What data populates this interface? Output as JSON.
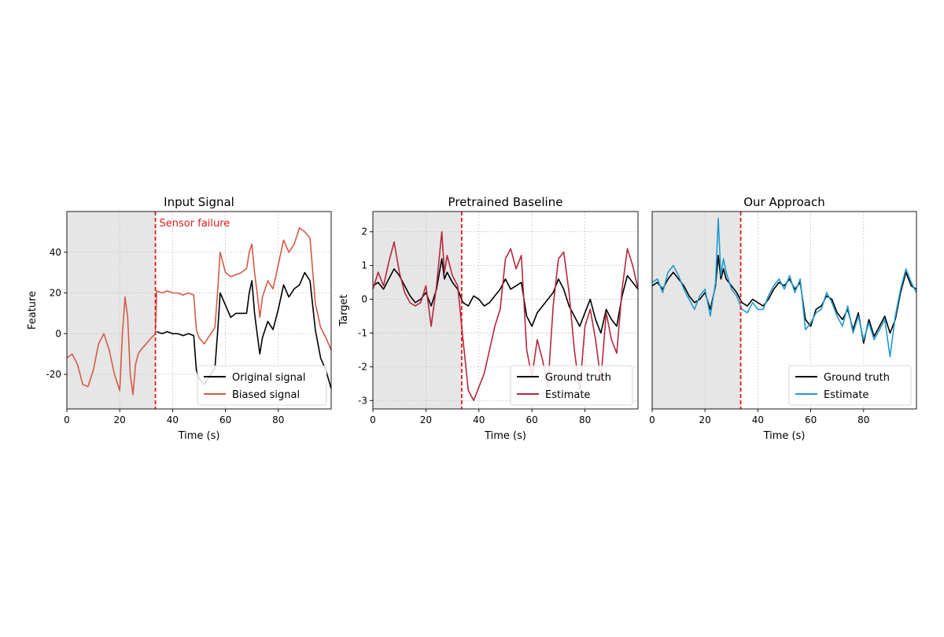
{
  "chart_data": [
    {
      "type": "line",
      "title": "Input Signal",
      "xlabel": "Time (s)",
      "ylabel": "Feature",
      "xlim": [
        0,
        100
      ],
      "ylim": [
        -37,
        60
      ],
      "xticks": [
        0,
        20,
        40,
        60,
        80
      ],
      "yticks": [
        -20,
        0,
        20,
        40
      ],
      "grid": true,
      "shaded_region": [
        0,
        33.5
      ],
      "vline": {
        "x": 33.5,
        "color": "#e41a1c",
        "label": "Sensor failure"
      },
      "legend_position": "lower-right",
      "series": [
        {
          "name": "Original signal",
          "color": "#000000",
          "x": [
            34,
            36,
            38,
            40,
            42,
            44,
            46,
            48,
            49,
            50,
            52,
            54,
            56,
            57,
            58,
            60,
            62,
            64,
            66,
            68,
            69,
            70,
            71,
            72,
            73,
            74,
            76,
            78,
            80,
            82,
            84,
            86,
            88,
            90,
            92,
            94,
            96,
            98,
            100
          ],
          "values": [
            1,
            0,
            1,
            0,
            0,
            -1,
            0,
            -1,
            -18,
            -22,
            -25,
            -21,
            -17,
            0,
            20,
            14,
            8,
            10,
            10,
            10,
            20,
            26,
            10,
            0,
            -10,
            -2,
            6,
            2,
            12,
            24,
            18,
            22,
            24,
            30,
            26,
            2,
            -12,
            -18,
            -27
          ]
        },
        {
          "name": "Biased signal",
          "color": "#d45b47",
          "x": [
            0,
            2,
            4,
            6,
            8,
            10,
            12,
            14,
            16,
            18,
            20,
            21,
            22,
            23,
            24,
            25,
            26,
            27,
            28,
            30,
            32,
            33.5,
            34,
            36,
            38,
            40,
            42,
            44,
            46,
            48,
            49,
            50,
            52,
            54,
            56,
            57,
            58,
            60,
            62,
            64,
            66,
            68,
            69,
            70,
            71,
            72,
            73,
            74,
            76,
            78,
            80,
            82,
            84,
            86,
            88,
            90,
            92,
            94,
            96,
            98,
            100
          ],
          "values": [
            -12,
            -10,
            -15,
            -25,
            -26,
            -18,
            -5,
            0,
            -8,
            -20,
            -28,
            0,
            18,
            8,
            -20,
            -30,
            -15,
            -10,
            -8,
            -5,
            -2,
            0,
            21,
            20,
            21,
            20,
            20,
            19,
            20,
            19,
            2,
            -2,
            -5,
            -1,
            3,
            20,
            40,
            30,
            28,
            29,
            30,
            32,
            40,
            44,
            30,
            20,
            8,
            18,
            26,
            22,
            34,
            46,
            40,
            44,
            52,
            50,
            47,
            15,
            3,
            -2,
            -8
          ]
        }
      ]
    },
    {
      "type": "line",
      "title": "Pretrained Baseline",
      "xlabel": "Time (s)",
      "ylabel": "Target",
      "xlim": [
        0,
        100
      ],
      "ylim": [
        -3.25,
        2.6
      ],
      "xticks": [
        0,
        20,
        40,
        60,
        80
      ],
      "yticks": [
        -3,
        -2,
        -1,
        0,
        1,
        2
      ],
      "grid": true,
      "shaded_region": [
        0,
        33.5
      ],
      "vline": {
        "x": 33.5,
        "color": "#e41a1c"
      },
      "legend_position": "lower-right",
      "series": [
        {
          "name": "Ground truth",
          "color": "#000000",
          "x": [
            0,
            2,
            4,
            6,
            8,
            10,
            12,
            14,
            16,
            18,
            20,
            22,
            24,
            26,
            27,
            28,
            30,
            32,
            34,
            36,
            38,
            40,
            42,
            44,
            46,
            48,
            50,
            52,
            54,
            56,
            58,
            60,
            62,
            64,
            66,
            68,
            70,
            72,
            74,
            76,
            78,
            80,
            82,
            84,
            86,
            88,
            90,
            92,
            94,
            96,
            98,
            100
          ],
          "values": [
            0.4,
            0.5,
            0.3,
            0.6,
            0.9,
            0.7,
            0.4,
            0.1,
            -0.1,
            0,
            0.2,
            -0.2,
            0.3,
            1.2,
            0.6,
            0.8,
            0.5,
            0.3,
            -0.1,
            -0.2,
            0.1,
            0,
            -0.2,
            -0.1,
            0.1,
            0.3,
            0.6,
            0.3,
            0.4,
            0.5,
            -0.5,
            -0.8,
            -0.4,
            -0.2,
            0,
            0.2,
            0.6,
            0.3,
            -0.2,
            -0.5,
            -0.8,
            -0.4,
            0,
            -0.6,
            -1,
            -0.3,
            -0.6,
            -0.8,
            0.1,
            0.7,
            0.5,
            0.3
          ]
        },
        {
          "name": "Estimate",
          "color": "#b5283b",
          "x": [
            0,
            2,
            4,
            6,
            8,
            10,
            12,
            14,
            16,
            18,
            20,
            22,
            24,
            26,
            27,
            28,
            30,
            32,
            34,
            36,
            38,
            40,
            42,
            44,
            46,
            48,
            50,
            52,
            54,
            56,
            58,
            60,
            62,
            64,
            66,
            68,
            70,
            72,
            74,
            76,
            78,
            80,
            82,
            84,
            86,
            88,
            90,
            92,
            94,
            96,
            98,
            100
          ],
          "values": [
            0.3,
            0.8,
            0.4,
            1.1,
            1.7,
            0.8,
            0.2,
            -0.1,
            -0.2,
            -0.1,
            0.4,
            -0.8,
            0.4,
            2,
            0.8,
            1.3,
            0.7,
            0.4,
            -1.2,
            -2.7,
            -3,
            -2.6,
            -2.2,
            -1.5,
            -0.8,
            -0.3,
            1.2,
            1.5,
            0.9,
            1.3,
            -1.5,
            -2.3,
            -1.2,
            -1.8,
            -2.6,
            -0.2,
            1.2,
            1.4,
            0.2,
            -1.5,
            -2.7,
            -0.8,
            -0.3,
            -1.2,
            -2.4,
            -0.4,
            -1.2,
            -1.6,
            0.3,
            1.5,
            1,
            0.3
          ]
        }
      ]
    },
    {
      "type": "line",
      "title": "Our Approach",
      "xlabel": "Time (s)",
      "ylabel": "",
      "xlim": [
        0,
        100
      ],
      "ylim": [
        -3.25,
        2.6
      ],
      "xticks": [
        0,
        20,
        40,
        60,
        80
      ],
      "yticks": [],
      "grid": true,
      "shaded_region": [
        0,
        33.5
      ],
      "vline": {
        "x": 33.5,
        "color": "#e41a1c"
      },
      "legend_position": "lower-right",
      "series": [
        {
          "name": "Ground truth",
          "color": "#000000",
          "x": [
            0,
            2,
            4,
            6,
            8,
            10,
            12,
            14,
            16,
            18,
            20,
            22,
            24,
            25,
            26,
            27,
            28,
            30,
            32,
            34,
            36,
            38,
            40,
            42,
            44,
            46,
            48,
            50,
            52,
            54,
            56,
            58,
            60,
            62,
            64,
            66,
            68,
            70,
            72,
            74,
            76,
            78,
            80,
            82,
            84,
            86,
            88,
            90,
            92,
            94,
            96,
            98,
            100
          ],
          "values": [
            0.4,
            0.5,
            0.3,
            0.6,
            0.8,
            0.6,
            0.4,
            0.1,
            -0.1,
            0,
            0.2,
            -0.3,
            0.4,
            1.3,
            0.6,
            0.9,
            0.6,
            0.4,
            0.2,
            -0.1,
            -0.2,
            0,
            -0.1,
            -0.2,
            0,
            0.3,
            0.5,
            0.4,
            0.6,
            0.3,
            0.5,
            -0.6,
            -0.8,
            -0.3,
            -0.2,
            0.1,
            0,
            -0.4,
            -0.6,
            -0.3,
            -0.9,
            -0.4,
            -1.3,
            -0.6,
            -1.1,
            -0.8,
            -0.5,
            -1,
            -0.6,
            0.2,
            0.8,
            0.4,
            0.3
          ]
        },
        {
          "name": "Estimate",
          "color": "#1f9bd0",
          "x": [
            0,
            2,
            4,
            6,
            8,
            10,
            12,
            14,
            16,
            18,
            20,
            22,
            24,
            25,
            26,
            27,
            28,
            30,
            32,
            34,
            36,
            38,
            40,
            42,
            44,
            46,
            48,
            50,
            52,
            54,
            56,
            58,
            60,
            62,
            64,
            66,
            68,
            70,
            72,
            74,
            76,
            78,
            80,
            82,
            84,
            86,
            88,
            90,
            92,
            94,
            96,
            98,
            100
          ],
          "values": [
            0.5,
            0.6,
            0.2,
            0.8,
            1,
            0.7,
            0.3,
            0,
            -0.3,
            0.1,
            0.3,
            -0.5,
            0.5,
            2.4,
            0.7,
            1.2,
            0.8,
            0.3,
            0.1,
            -0.3,
            -0.4,
            -0.1,
            -0.3,
            -0.3,
            0.1,
            0.4,
            0.6,
            0.3,
            0.7,
            0.2,
            0.6,
            -0.9,
            -0.7,
            -0.4,
            -0.3,
            0.2,
            -0.1,
            -0.5,
            -0.8,
            -0.2,
            -1,
            -0.5,
            -1.2,
            -0.7,
            -1.2,
            -0.9,
            -0.6,
            -1.7,
            -0.5,
            0.3,
            0.9,
            0.5,
            0.2
          ]
        }
      ]
    }
  ]
}
